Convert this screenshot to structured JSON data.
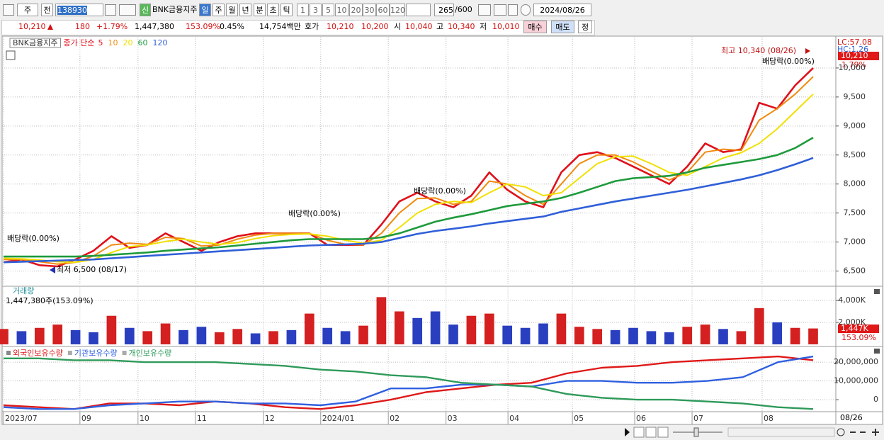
{
  "toolbar": {
    "code_type": "주",
    "prev": "전",
    "code": "138930",
    "credit": "신",
    "name": "BNK금융지주",
    "periods": [
      "일",
      "주",
      "월",
      "년",
      "분",
      "초",
      "틱"
    ],
    "minutes": [
      "1",
      "3",
      "5",
      "10",
      "20",
      "30",
      "60",
      "120"
    ],
    "count": "265",
    "max_count": "/600",
    "date": "2024/08/26"
  },
  "quote": {
    "price": "10,210",
    "change": "180",
    "change_pct": "+1.79%",
    "volume": "1,447,380",
    "volume_ratio": "153.09%",
    "turnover": "0.45%",
    "amount": "14,754백만",
    "bid_ask_label": "호가",
    "ask": "10,210",
    "bid": "10,200",
    "open_label": "시",
    "open": "10,040",
    "high_label": "고",
    "high": "10,340",
    "low_label": "저",
    "low": "10,010",
    "buy": "매수",
    "sell": "매도",
    "correct": "정"
  },
  "chart_data": [
    {
      "type": "line",
      "title": "BNK금융지주",
      "legend_title": "종가 단순",
      "series": [
        {
          "name": "5",
          "color": "#e0101a",
          "values": [
            6650,
            6700,
            6600,
            6580,
            6700,
            6850,
            7100,
            6900,
            6950,
            7150,
            7000,
            6850,
            7000,
            7100,
            7150,
            7150,
            7150,
            7150,
            6950,
            6950,
            6950,
            7300,
            7700,
            7850,
            7700,
            7600,
            7800,
            8200,
            7900,
            7700,
            7600,
            8200,
            8500,
            8550,
            8450,
            8300,
            8150,
            8000,
            8300,
            8700,
            8550,
            8600,
            9400,
            9300,
            9700,
            10000
          ]
        },
        {
          "name": "10",
          "color": "#f08a10",
          "values": [
            6700,
            6700,
            6660,
            6620,
            6650,
            6760,
            6950,
            6980,
            6960,
            7080,
            7060,
            6930,
            6950,
            7050,
            7120,
            7150,
            7150,
            7150,
            7030,
            6960,
            6950,
            7150,
            7500,
            7750,
            7760,
            7650,
            7700,
            8050,
            8000,
            7800,
            7650,
            8000,
            8350,
            8500,
            8500,
            8380,
            8220,
            8070,
            8200,
            8550,
            8600,
            8580,
            9100,
            9300,
            9550,
            9850
          ]
        },
        {
          "name": "20",
          "color": "#f0e000",
          "values": [
            6720,
            6710,
            6690,
            6660,
            6650,
            6700,
            6820,
            6920,
            6950,
            7010,
            7050,
            7000,
            6960,
            6990,
            7060,
            7110,
            7130,
            7140,
            7100,
            7030,
            6980,
            7030,
            7250,
            7500,
            7650,
            7700,
            7680,
            7850,
            8000,
            7950,
            7800,
            7850,
            8100,
            8350,
            8470,
            8480,
            8350,
            8200,
            8150,
            8300,
            8450,
            8540,
            8700,
            8950,
            9250,
            9550
          ]
        },
        {
          "name": "60",
          "color": "#1e9a3c",
          "values": [
            6750,
            6750,
            6750,
            6750,
            6750,
            6760,
            6780,
            6800,
            6820,
            6850,
            6870,
            6890,
            6910,
            6940,
            6970,
            7000,
            7030,
            7050,
            7050,
            7050,
            7050,
            7080,
            7150,
            7250,
            7350,
            7420,
            7480,
            7550,
            7620,
            7660,
            7700,
            7760,
            7850,
            7950,
            8050,
            8100,
            8120,
            8140,
            8200,
            8280,
            8330,
            8380,
            8430,
            8500,
            8620,
            8800
          ]
        },
        {
          "name": "120",
          "color": "#2f5fd8",
          "values": [
            6650,
            6660,
            6670,
            6680,
            6690,
            6700,
            6720,
            6740,
            6760,
            6780,
            6800,
            6820,
            6840,
            6860,
            6880,
            6900,
            6920,
            6940,
            6950,
            6960,
            6970,
            7000,
            7070,
            7140,
            7190,
            7230,
            7270,
            7320,
            7360,
            7400,
            7440,
            7520,
            7580,
            7640,
            7700,
            7750,
            7800,
            7850,
            7900,
            7960,
            8020,
            8080,
            8150,
            8240,
            8340,
            8450
          ]
        }
      ],
      "ylim": [
        6250,
        10500
      ],
      "yticks": [
        {
          "value": 6500,
          "label": "6,500"
        },
        {
          "value": 7000,
          "label": "7,000"
        },
        {
          "value": 7500,
          "label": "7,500"
        },
        {
          "value": 8000,
          "label": "8,000"
        },
        {
          "value": 8500,
          "label": "8,500"
        },
        {
          "value": 9000,
          "label": "9,000"
        },
        {
          "value": 9500,
          "label": "9,500"
        },
        {
          "value": 10000,
          "label": "10,000"
        }
      ],
      "annotations": [
        "배당락(0.00%)",
        "배당락(0.00%)",
        "배당락(0.00%)",
        "최고 10,340 (08/26)",
        "최저 6,500 (08/17)"
      ],
      "side_labels": [
        "LC:57.08",
        "HC:1.26"
      ],
      "last_value_label": "10,210",
      "last_change_label": "1.79%"
    },
    {
      "type": "bar",
      "title": "거래량",
      "subtitle": "1,447,380주(153.09%)",
      "values": [
        1400,
        1200,
        1500,
        1800,
        1300,
        1100,
        2600,
        1500,
        1200,
        1900,
        1300,
        1600,
        1100,
        1400,
        1000,
        1200,
        1300,
        2800,
        1500,
        1200,
        1700,
        4300,
        3000,
        2400,
        3000,
        1800,
        2600,
        2800,
        1700,
        1500,
        1900,
        2800,
        1600,
        1400,
        1300,
        1500,
        1200,
        1100,
        1600,
        1800,
        1400,
        1200,
        3300,
        2000,
        1500,
        1447
      ],
      "colors": [
        "#d42020",
        "#2a3fc0",
        "#d42020",
        "#d42020",
        "#2a3fc0",
        "#2a3fc0",
        "#d42020",
        "#2a3fc0",
        "#d42020",
        "#d42020",
        "#2a3fc0",
        "#2a3fc0",
        "#d42020",
        "#d42020",
        "#2a3fc0",
        "#d42020",
        "#2a3fc0",
        "#d42020",
        "#2a3fc0",
        "#2a3fc0",
        "#d42020",
        "#d42020",
        "#d42020",
        "#2a3fc0",
        "#2a3fc0",
        "#2a3fc0",
        "#d42020",
        "#d42020",
        "#2a3fc0",
        "#2a3fc0",
        "#2a3fc0",
        "#d42020",
        "#d42020",
        "#d42020",
        "#2a3fc0",
        "#2a3fc0",
        "#2a3fc0",
        "#2a3fc0",
        "#d42020",
        "#d42020",
        "#2a3fc0",
        "#d42020",
        "#d42020",
        "#2a3fc0",
        "#d42020",
        "#d42020"
      ],
      "ylim": [
        0,
        5000
      ],
      "yticks": [
        {
          "value": 2000,
          "label": "2,000K"
        },
        {
          "value": 4000,
          "label": "4,000K"
        }
      ],
      "last_value_label": "1,447K",
      "last_change_label": "153.09%"
    },
    {
      "type": "line",
      "series": [
        {
          "name": "외국인보유수량",
          "color": "#e01818",
          "values": [
            -3000000,
            -4000000,
            -5000000,
            -2000000,
            -2000000,
            -3000000,
            -1000000,
            -2000000,
            -4000000,
            -5000000,
            -3000000,
            0,
            4000000,
            6000000,
            8000000,
            9000000,
            14000000,
            17000000,
            18000000,
            20000000,
            21000000,
            22000000,
            23000000,
            21000000
          ]
        },
        {
          "name": "기관보유수량",
          "color": "#3060e0",
          "values": [
            -4000000,
            -5000000,
            -5000000,
            -3000000,
            -2000000,
            -1000000,
            -1000000,
            -2000000,
            -2000000,
            -3000000,
            -1000000,
            6000000,
            6000000,
            8000000,
            8000000,
            7000000,
            10000000,
            10000000,
            9000000,
            9000000,
            10000000,
            12000000,
            20000000,
            23000000
          ]
        },
        {
          "name": "개인보유수량",
          "color": "#2e9a5a",
          "values": [
            22000000,
            22000000,
            21000000,
            21000000,
            20000000,
            20000000,
            20000000,
            19000000,
            18000000,
            16000000,
            15000000,
            13000000,
            12000000,
            9000000,
            8000000,
            7000000,
            3000000,
            1000000,
            0,
            0,
            -1000000,
            -2000000,
            -4000000,
            -5000000
          ]
        }
      ],
      "ylim": [
        -6000000,
        27200000
      ],
      "yticks": [
        0,
        {
          "value": 10000000,
          "label": "10,000,000"
        },
        {
          "value": 20000000,
          "label": "20,000,000"
        }
      ],
      "xlim": [
        0,
        23
      ],
      "xticks": [
        {
          "value": 0,
          "label": "2023/07"
        },
        {
          "value": 2.17,
          "label": "09"
        },
        {
          "value": 3.82,
          "label": "10"
        },
        {
          "value": 5.45,
          "label": "11"
        },
        {
          "value": 7.38,
          "label": "12"
        },
        {
          "value": 9.01,
          "label": "2024/01"
        },
        {
          "value": 10.93,
          "label": "02"
        },
        {
          "value": 12.57,
          "label": "03"
        },
        {
          "value": 14.33,
          "label": "04"
        },
        {
          "value": 16.16,
          "label": "05"
        },
        {
          "value": 17.93,
          "label": "06"
        },
        {
          "value": 19.56,
          "label": "07"
        },
        {
          "value": 21.55,
          "label": "08"
        }
      ],
      "last_date": "08/26"
    }
  ]
}
